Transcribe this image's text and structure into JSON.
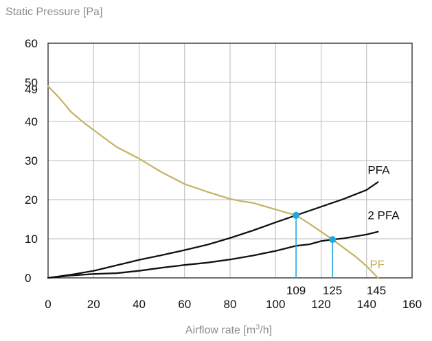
{
  "chart_data": {
    "type": "line",
    "ylabel": "Static Pressure [Pa]",
    "xlabel_prefix": "Airflow rate [m",
    "xlabel_sup": "3",
    "xlabel_suffix": "/h]",
    "xlim": [
      0,
      160
    ],
    "ylim": [
      0,
      60
    ],
    "xticks": [
      "0",
      "20",
      "40",
      "60",
      "80",
      "100",
      "120",
      "140",
      "160"
    ],
    "yticks": [
      "0",
      "10",
      "20",
      "30",
      "40",
      "50",
      "60"
    ],
    "grid": true,
    "series": [
      {
        "name": "PF",
        "color": "#c6b464",
        "x": [
          0,
          5,
          10,
          15,
          20,
          30,
          40,
          50,
          60,
          70,
          80,
          85,
          90,
          100,
          109,
          115,
          125,
          135,
          140,
          145
        ],
        "y": [
          49,
          46,
          42.5,
          40,
          37.8,
          33.5,
          30.5,
          27,
          24,
          22,
          20.2,
          19.6,
          19.2,
          17.5,
          16,
          13.8,
          9.8,
          5.5,
          3,
          0
        ]
      },
      {
        "name": "PFA",
        "color": "#111111",
        "x": [
          0,
          10,
          20,
          30,
          40,
          50,
          60,
          70,
          80,
          90,
          100,
          109,
          120,
          130,
          140,
          145
        ],
        "y": [
          0,
          0.8,
          1.8,
          3.2,
          4.6,
          5.8,
          7.1,
          8.5,
          10.2,
          12.1,
          14.2,
          16,
          18.2,
          20.2,
          22.5,
          24.5
        ]
      },
      {
        "name": "2 PFA",
        "color": "#111111",
        "x": [
          0,
          10,
          20,
          30,
          40,
          50,
          60,
          70,
          80,
          90,
          100,
          109,
          115,
          120,
          125,
          130,
          140,
          145
        ],
        "y": [
          0,
          0.6,
          1,
          1.2,
          1.8,
          2.6,
          3.3,
          3.9,
          4.7,
          5.7,
          6.9,
          8.2,
          8.6,
          9.4,
          9.8,
          10.1,
          11.1,
          11.8
        ]
      }
    ],
    "markers": [
      {
        "x": 109,
        "y": 16,
        "color": "#1ea7e1",
        "label": "109"
      },
      {
        "x": 125,
        "y": 9.8,
        "color": "#1ea7e1",
        "label": "125"
      }
    ],
    "annotations": {
      "y_value_label": "49",
      "x_value_label": "145"
    }
  }
}
